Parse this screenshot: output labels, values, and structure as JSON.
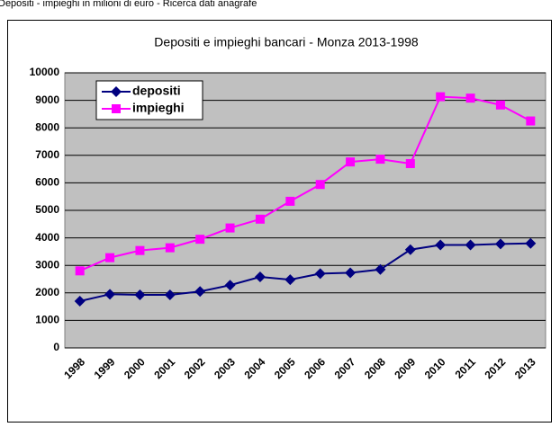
{
  "header": "Depositi - impieghi in milioni di euro - Ricerca dati anagrafe",
  "chart_data": {
    "type": "line",
    "title": "Depositi e impieghi bancari - Monza 2013-1998",
    "categories": [
      "1998",
      "1999",
      "2000",
      "2001",
      "2002",
      "2003",
      "2004",
      "2005",
      "2006",
      "2007",
      "2008",
      "2009",
      "2010",
      "2011",
      "2012",
      "2013"
    ],
    "series": [
      {
        "name": "depositi",
        "color": "#000080",
        "values": [
          1700,
          1950,
          1930,
          1930,
          2050,
          2280,
          2580,
          2480,
          2700,
          2730,
          2850,
          3570,
          3740,
          3740,
          3780,
          3800
        ]
      },
      {
        "name": "impieghi",
        "color": "#ff00ff",
        "values": [
          2800,
          3280,
          3540,
          3640,
          3950,
          4360,
          4680,
          5330,
          5940,
          6760,
          6860,
          6700,
          9130,
          9080,
          8830,
          8250
        ]
      }
    ],
    "ylim": [
      0,
      10000
    ],
    "yticks": [
      0,
      1000,
      2000,
      3000,
      4000,
      5000,
      6000,
      7000,
      8000,
      9000,
      10000
    ],
    "grid": true,
    "legend": "top-left"
  }
}
